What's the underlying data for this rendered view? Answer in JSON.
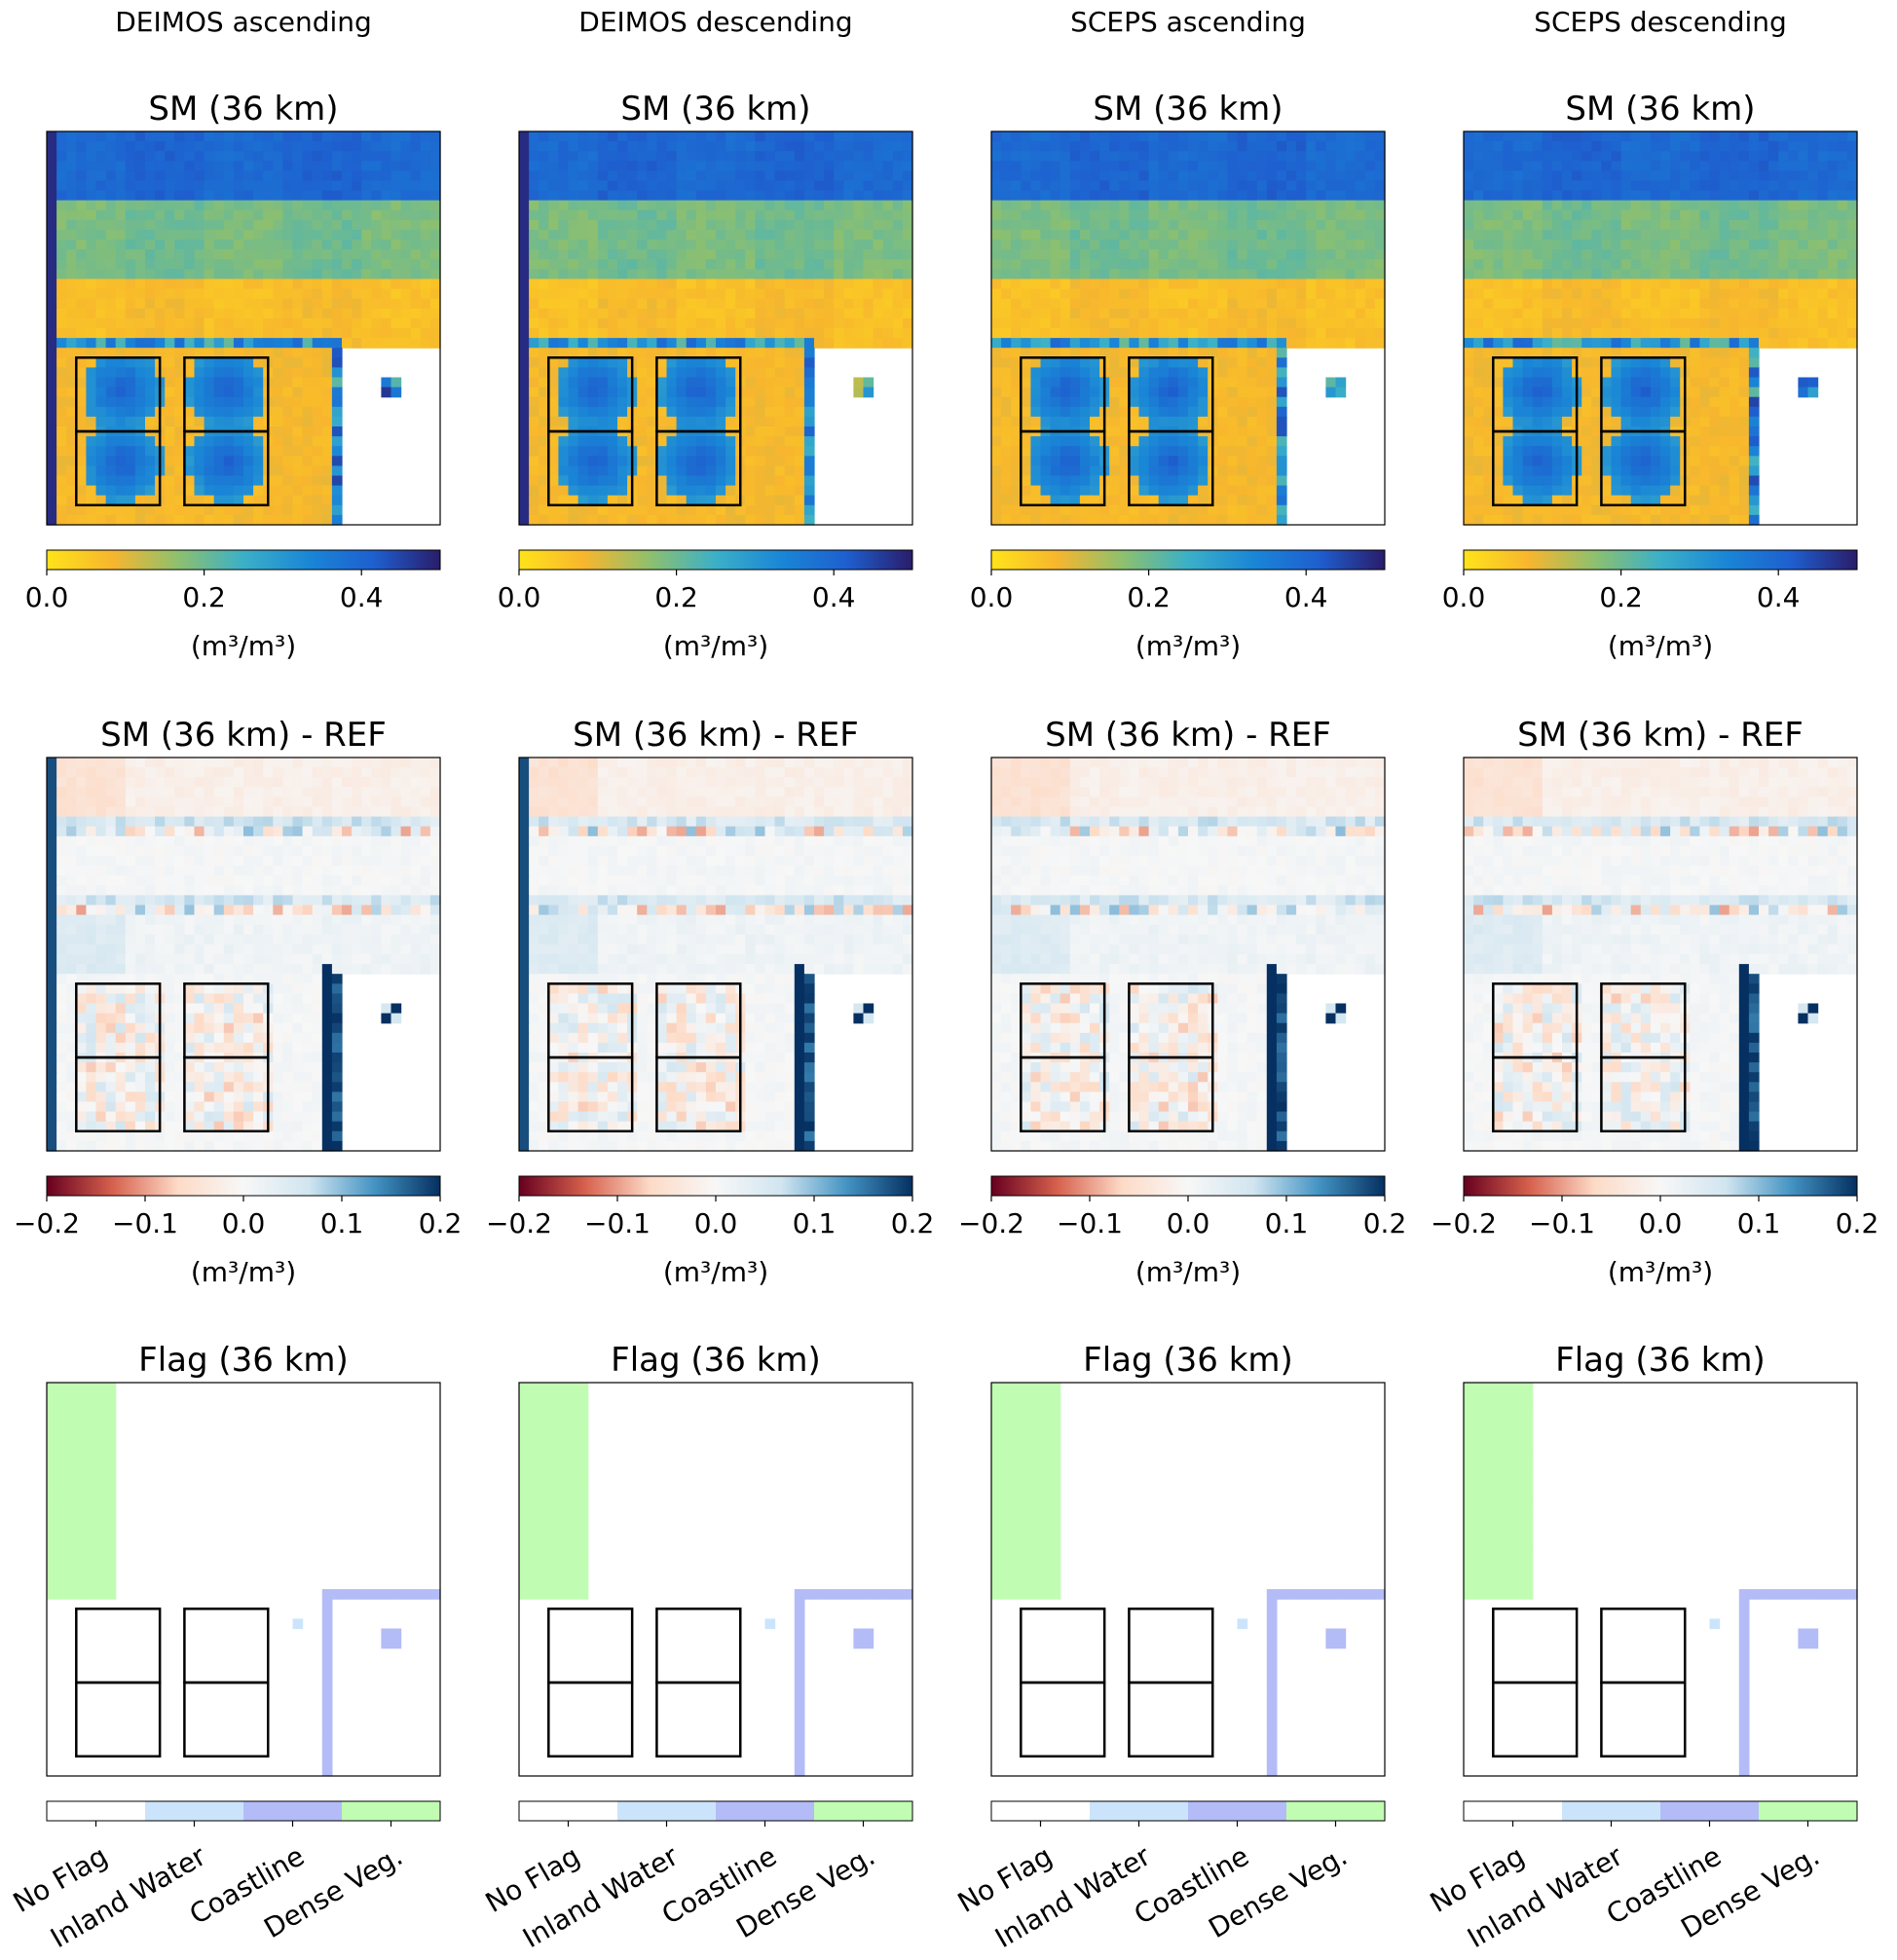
{
  "chart_data": {
    "type": "heatmap",
    "columns": [
      {
        "label": "DEIMOS ascending",
        "dataset": "DEIMOS",
        "pass": "ascending"
      },
      {
        "label": "DEIMOS descending",
        "dataset": "DEIMOS",
        "pass": "descending"
      },
      {
        "label": "SCEPS ascending",
        "dataset": "SCEPS",
        "pass": "ascending"
      },
      {
        "label": "SCEPS descending",
        "dataset": "SCEPS",
        "pass": "descending"
      }
    ],
    "rows": [
      {
        "title": "SM (36 km)",
        "colormap": [
          "#ffe31a",
          "#f7b62e",
          "#8ec06e",
          "#3bb0c8",
          "#1a86d6",
          "#1e5fcf",
          "#2a1c6a"
        ],
        "colorbar": {
          "min": 0.0,
          "max": 0.5,
          "ticks": [
            0.0,
            0.2,
            0.4
          ],
          "tick_labels": [
            "0.0",
            "0.2",
            "0.4"
          ],
          "unit": "(m³/m³)"
        }
      },
      {
        "title": "SM (36 km) - REF",
        "colormap": [
          "#67001f",
          "#d6604d",
          "#fddbc7",
          "#f7f7f7",
          "#d1e5f0",
          "#4393c3",
          "#053061"
        ],
        "colorbar": {
          "min": -0.2,
          "max": 0.2,
          "ticks": [
            -0.2,
            -0.1,
            0.0,
            0.1,
            0.2
          ],
          "tick_labels": [
            "−0.2",
            "−0.1",
            "0.0",
            "0.1",
            "0.2"
          ],
          "unit": "(m³/m³)"
        }
      },
      {
        "title": "Flag (36 km)",
        "categories": [
          {
            "label": "No Flag",
            "color": "#ffffff"
          },
          {
            "label": "Inland Water",
            "color": "#cce4fb"
          },
          {
            "label": "Coastline",
            "color": "#b3bcf7"
          },
          {
            "label": "Dense Veg.",
            "color": "#c1fcb3"
          }
        ]
      }
    ],
    "sm_bands": [
      {
        "name": "top",
        "value": 0.4
      },
      {
        "name": "middle",
        "value": 0.19
      },
      {
        "name": "lower",
        "value": 0.07
      }
    ],
    "diff_bands": [
      {
        "name": "top-left",
        "value": -0.05
      },
      {
        "name": "top",
        "value": -0.02
      },
      {
        "name": "middle",
        "value": 0.005
      },
      {
        "name": "lower-left",
        "value": 0.045
      },
      {
        "name": "lower",
        "value": 0.015
      }
    ],
    "circles_sm_min": 0.3,
    "circles_sm_max": 0.42
  }
}
